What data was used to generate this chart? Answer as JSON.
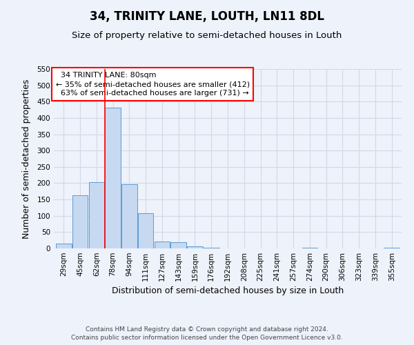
{
  "title": "34, TRINITY LANE, LOUTH, LN11 8DL",
  "subtitle": "Size of property relative to semi-detached houses in Louth",
  "xlabel": "Distribution of semi-detached houses by size in Louth",
  "ylabel": "Number of semi-detached properties",
  "categories": [
    "29sqm",
    "45sqm",
    "62sqm",
    "78sqm",
    "94sqm",
    "111sqm",
    "127sqm",
    "143sqm",
    "159sqm",
    "176sqm",
    "192sqm",
    "208sqm",
    "225sqm",
    "241sqm",
    "257sqm",
    "274sqm",
    "290sqm",
    "306sqm",
    "323sqm",
    "339sqm",
    "355sqm"
  ],
  "values": [
    15,
    163,
    204,
    432,
    197,
    107,
    22,
    19,
    7,
    2,
    0,
    0,
    0,
    0,
    0,
    2,
    0,
    0,
    0,
    0,
    2
  ],
  "bar_color": "#c6d9f0",
  "bar_edge_color": "#5b9bd5",
  "property_label": "34 TRINITY LANE: 80sqm",
  "pct_smaller": 35,
  "count_smaller": 412,
  "pct_larger": 63,
  "count_larger": 731,
  "marker_bin_index": 3,
  "ylim": [
    0,
    550
  ],
  "yticks": [
    0,
    50,
    100,
    150,
    200,
    250,
    300,
    350,
    400,
    450,
    500,
    550
  ],
  "title_fontsize": 12,
  "subtitle_fontsize": 9.5,
  "axis_label_fontsize": 9,
  "tick_fontsize": 7.5,
  "footer_line1": "Contains HM Land Registry data © Crown copyright and database right 2024.",
  "footer_line2": "Contains public sector information licensed under the Open Government Licence v3.0.",
  "bg_color": "#eef2fa",
  "grid_color": "#d0d8e8"
}
